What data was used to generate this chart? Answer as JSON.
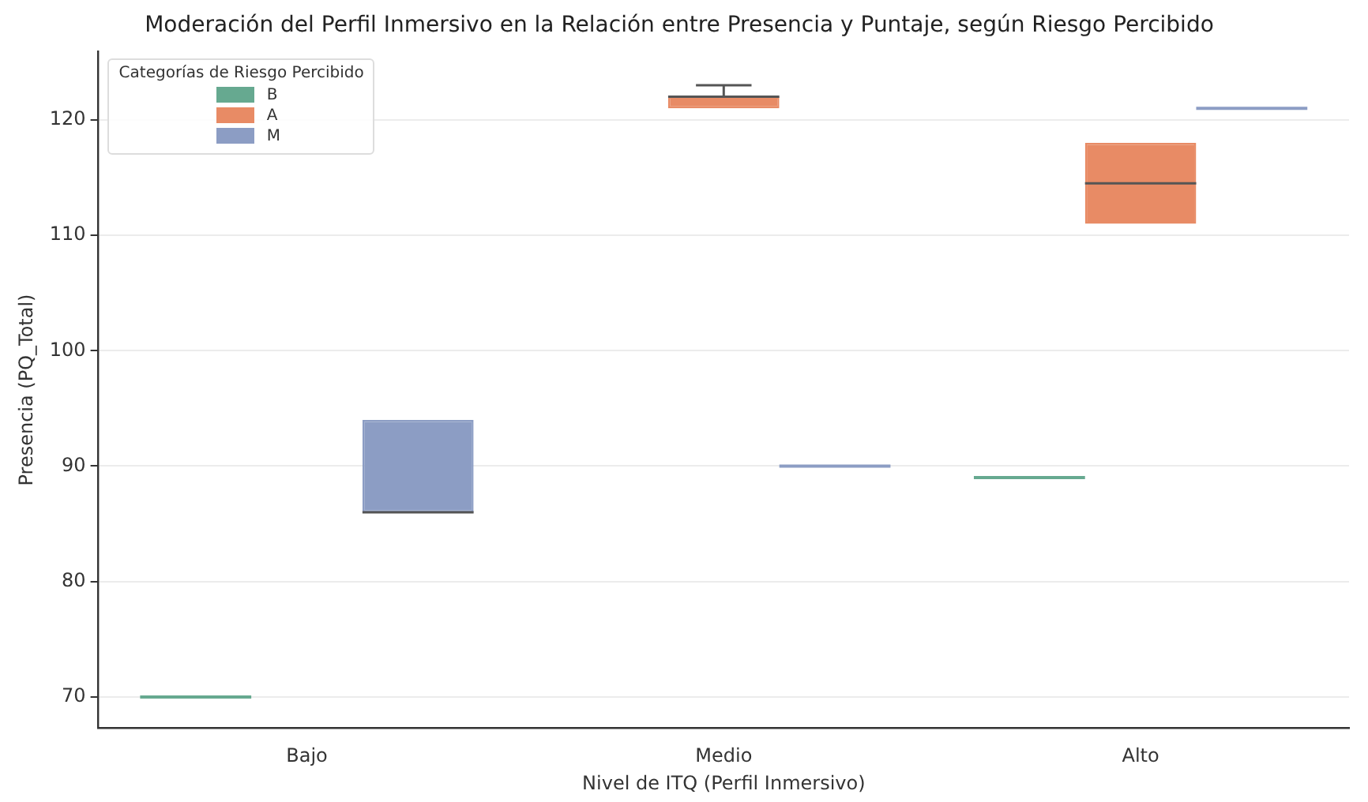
{
  "chart_data": {
    "type": "box",
    "title": "Moderación del Perfil Inmersivo en la Relación entre Presencia y Puntaje, según Riesgo Percibido",
    "xlabel": "Nivel de ITQ (Perfil Inmersivo)",
    "ylabel": "Presencia (PQ_Total)",
    "legend_title": "Categorías de Riesgo Percibido",
    "legend": "top left",
    "grid": "y",
    "categories": [
      "Bajo",
      "Medio",
      "Alto"
    ],
    "ylim": [
      67.3,
      125.9
    ],
    "yticks": [
      70,
      80,
      90,
      100,
      110,
      120
    ],
    "series": [
      {
        "name": "B",
        "color": "#66a990",
        "boxes": [
          {
            "low": 70,
            "q1": 70,
            "median": 70,
            "q3": 70,
            "high": 70
          },
          null,
          {
            "low": 89,
            "q1": 89,
            "median": 89,
            "q3": 89,
            "high": 89
          }
        ]
      },
      {
        "name": "A",
        "color": "#e88b65",
        "boxes": [
          null,
          {
            "low": 121,
            "q1": 121,
            "median": 122,
            "q3": 122,
            "high": 123
          },
          {
            "low": 111,
            "q1": 111,
            "median": 114.5,
            "q3": 118,
            "high": 118
          }
        ]
      },
      {
        "name": "M",
        "color": "#8c9dc4",
        "boxes": [
          {
            "low": 86,
            "q1": 86,
            "median": 86,
            "q3": 94,
            "high": 94
          },
          {
            "low": 90,
            "q1": 90,
            "median": 90,
            "q3": 90,
            "high": 90
          },
          {
            "low": 121,
            "q1": 121,
            "median": 121,
            "q3": 121,
            "high": 121
          }
        ]
      }
    ]
  }
}
